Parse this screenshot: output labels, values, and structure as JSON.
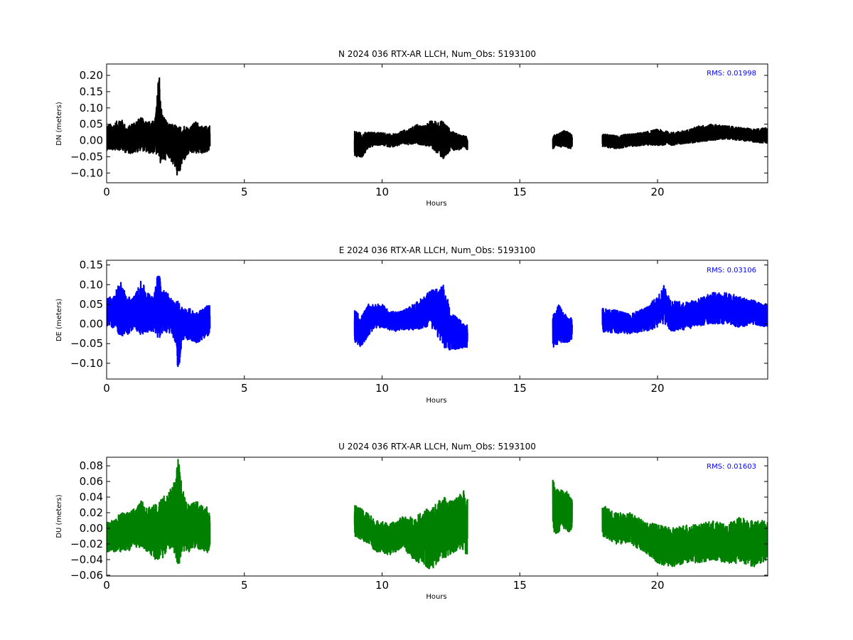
{
  "chart_data": [
    {
      "type": "line",
      "title": "N 2024 036 RTX-AR  LLCH, Num_Obs: 5193100",
      "xlabel": "Hours",
      "ylabel": "DN (meters)",
      "xlim": [
        0,
        24
      ],
      "ylim": [
        -0.13,
        0.235
      ],
      "xticks": [
        0,
        5,
        10,
        15,
        20
      ],
      "xtick_labels": [
        "0",
        "5",
        "10",
        "15",
        "20"
      ],
      "yticks": [
        -0.1,
        -0.05,
        0.0,
        0.05,
        0.1,
        0.15,
        0.2
      ],
      "ytick_labels": [
        "−0.10",
        "−0.05",
        "0.00",
        "0.05",
        "0.10",
        "0.15",
        "0.20"
      ],
      "color": "#000000",
      "annotation": "RMS:  0.01998",
      "segments": [
        {
          "x": [
            0.0,
            0.25,
            0.5,
            0.75,
            1.0,
            1.25,
            1.5,
            1.75,
            1.85,
            1.9,
            2.0,
            2.25,
            2.5,
            2.6,
            2.75,
            3.0,
            3.25,
            3.5,
            3.75
          ],
          "y_mid": [
            0.01,
            0.01,
            0.02,
            0.0,
            0.01,
            0.02,
            0.01,
            0.01,
            0.05,
            0.08,
            0.01,
            0.0,
            -0.02,
            -0.04,
            -0.01,
            0.0,
            0.01,
            0.0,
            0.01
          ],
          "y_spread": [
            0.04,
            0.04,
            0.05,
            0.04,
            0.05,
            0.05,
            0.05,
            0.05,
            0.1,
            0.15,
            0.08,
            0.05,
            0.07,
            0.08,
            0.06,
            0.04,
            0.05,
            0.04,
            0.04
          ]
        },
        {
          "x": [
            9.0,
            9.25,
            9.5,
            9.75,
            10.0,
            10.25,
            10.5,
            10.75,
            11.0,
            11.25,
            11.5,
            11.75,
            12.0,
            12.25,
            12.5,
            12.75,
            13.0,
            13.1
          ],
          "y_mid": [
            -0.01,
            -0.015,
            0.0,
            0.005,
            0.005,
            0.0,
            0.0,
            0.01,
            0.01,
            0.02,
            0.015,
            0.02,
            0.01,
            0.0,
            0.0,
            -0.005,
            -0.005,
            -0.01
          ],
          "y_spread": [
            0.04,
            0.04,
            0.025,
            0.02,
            0.02,
            0.02,
            0.02,
            0.02,
            0.025,
            0.03,
            0.03,
            0.04,
            0.05,
            0.06,
            0.03,
            0.025,
            0.02,
            0.02
          ]
        },
        {
          "x": [
            16.2,
            16.4,
            16.6,
            16.8,
            16.9
          ],
          "y_mid": [
            -0.005,
            0.0,
            0.005,
            0.0,
            -0.005
          ],
          "y_spread": [
            0.02,
            0.02,
            0.025,
            0.025,
            0.02
          ]
        },
        {
          "x": [
            18.0,
            18.5,
            19.0,
            19.5,
            20.0,
            20.5,
            21.0,
            21.5,
            22.0,
            22.5,
            23.0,
            23.5,
            24.0
          ],
          "y_mid": [
            0.0,
            -0.005,
            0.0,
            0.005,
            0.01,
            0.005,
            0.01,
            0.02,
            0.025,
            0.025,
            0.02,
            0.015,
            0.015
          ],
          "y_spread": [
            0.02,
            0.02,
            0.02,
            0.02,
            0.025,
            0.02,
            0.02,
            0.025,
            0.025,
            0.02,
            0.02,
            0.02,
            0.025
          ]
        }
      ]
    },
    {
      "type": "line",
      "title": "E 2024 036 RTX-AR  LLCH, Num_Obs: 5193100",
      "xlabel": "Hours",
      "ylabel": "DE (meters)",
      "xlim": [
        0,
        24
      ],
      "ylim": [
        -0.14,
        0.162
      ],
      "xticks": [
        0,
        5,
        10,
        15,
        20
      ],
      "xtick_labels": [
        "0",
        "5",
        "10",
        "15",
        "20"
      ],
      "yticks": [
        -0.1,
        -0.05,
        0.0,
        0.05,
        0.1,
        0.15
      ],
      "ytick_labels": [
        "−0.10",
        "−0.05",
        "0.00",
        "0.05",
        "0.10",
        "0.15"
      ],
      "color": "#0000ff",
      "annotation": "RMS:  0.03106",
      "segments": [
        {
          "x": [
            0.0,
            0.25,
            0.5,
            0.75,
            1.0,
            1.25,
            1.5,
            1.75,
            1.9,
            2.0,
            2.25,
            2.5,
            2.6,
            2.75,
            3.0,
            3.25,
            3.5,
            3.75
          ],
          "y_mid": [
            0.03,
            0.03,
            0.04,
            0.02,
            0.03,
            0.04,
            0.03,
            0.03,
            0.06,
            0.03,
            0.03,
            0.0,
            -0.03,
            0.0,
            0.0,
            -0.01,
            0.0,
            0.01
          ],
          "y_spread": [
            0.04,
            0.04,
            0.07,
            0.05,
            0.04,
            0.07,
            0.05,
            0.05,
            0.1,
            0.06,
            0.05,
            0.05,
            0.1,
            0.04,
            0.04,
            0.04,
            0.04,
            0.04
          ]
        },
        {
          "x": [
            9.0,
            9.25,
            9.5,
            9.75,
            10.0,
            10.25,
            10.5,
            10.75,
            11.0,
            11.25,
            11.5,
            11.75,
            12.0,
            12.25,
            12.5,
            12.75,
            13.0,
            13.1
          ],
          "y_mid": [
            -0.005,
            -0.02,
            0.01,
            0.02,
            0.02,
            0.01,
            0.005,
            0.01,
            0.015,
            0.02,
            0.03,
            0.04,
            0.03,
            0.02,
            -0.02,
            -0.025,
            -0.03,
            -0.03
          ],
          "y_spread": [
            0.04,
            0.04,
            0.04,
            0.03,
            0.03,
            0.025,
            0.025,
            0.025,
            0.03,
            0.035,
            0.04,
            0.045,
            0.06,
            0.08,
            0.05,
            0.04,
            0.03,
            0.03
          ]
        },
        {
          "x": [
            16.2,
            16.4,
            16.6,
            16.8,
            16.9
          ],
          "y_mid": [
            -0.02,
            0.0,
            -0.01,
            -0.015,
            -0.01
          ],
          "y_spread": [
            0.04,
            0.05,
            0.04,
            0.03,
            0.03
          ]
        },
        {
          "x": [
            18.0,
            18.5,
            19.0,
            19.5,
            20.0,
            20.25,
            20.5,
            21.0,
            21.5,
            22.0,
            22.5,
            23.0,
            23.5,
            24.0
          ],
          "y_mid": [
            0.01,
            0.005,
            0.0,
            0.01,
            0.03,
            0.05,
            0.02,
            0.02,
            0.03,
            0.04,
            0.04,
            0.03,
            0.03,
            0.02
          ],
          "y_spread": [
            0.03,
            0.03,
            0.025,
            0.03,
            0.04,
            0.05,
            0.04,
            0.035,
            0.035,
            0.04,
            0.04,
            0.04,
            0.03,
            0.03
          ]
        }
      ]
    },
    {
      "type": "line",
      "title": "U 2024 036 RTX-AR  LLCH, Num_Obs: 5193100",
      "xlabel": "Hours",
      "ylabel": "DU (meters)",
      "xlim": [
        0,
        24
      ],
      "ylim": [
        -0.061,
        0.091
      ],
      "xticks": [
        0,
        5,
        10,
        15,
        20
      ],
      "xtick_labels": [
        "0",
        "5",
        "10",
        "15",
        "20"
      ],
      "yticks": [
        -0.06,
        -0.04,
        -0.02,
        0.0,
        0.02,
        0.04,
        0.06,
        0.08
      ],
      "ytick_labels": [
        "−0.06",
        "−0.04",
        "−0.02",
        "0.00",
        "0.02",
        "0.04",
        "0.06",
        "0.08"
      ],
      "color": "#008000",
      "annotation": "RMS:  0.01603",
      "segments": [
        {
          "x": [
            0.0,
            0.25,
            0.5,
            0.75,
            1.0,
            1.25,
            1.5,
            1.75,
            2.0,
            2.25,
            2.5,
            2.6,
            2.75,
            3.0,
            3.25,
            3.5,
            3.75
          ],
          "y_mid": [
            -0.01,
            -0.01,
            -0.005,
            -0.005,
            0.0,
            0.005,
            0.0,
            -0.005,
            0.0,
            0.01,
            0.015,
            0.02,
            0.01,
            0.0,
            0.005,
            0.0,
            -0.005
          ],
          "y_spread": [
            0.02,
            0.02,
            0.025,
            0.025,
            0.025,
            0.03,
            0.03,
            0.035,
            0.04,
            0.035,
            0.05,
            0.07,
            0.04,
            0.03,
            0.03,
            0.03,
            0.03
          ]
        },
        {
          "x": [
            9.0,
            9.25,
            9.5,
            9.75,
            10.0,
            10.25,
            10.5,
            10.75,
            11.0,
            11.25,
            11.5,
            11.75,
            12.0,
            12.25,
            12.5,
            12.75,
            13.0,
            13.1
          ],
          "y_mid": [
            0.01,
            0.005,
            0.0,
            -0.01,
            -0.01,
            -0.015,
            -0.01,
            -0.005,
            -0.01,
            -0.015,
            -0.01,
            -0.015,
            -0.005,
            0.0,
            0.0,
            0.005,
            0.01,
            0.0
          ],
          "y_spread": [
            0.02,
            0.02,
            0.02,
            0.02,
            0.02,
            0.02,
            0.02,
            0.02,
            0.025,
            0.03,
            0.035,
            0.04,
            0.04,
            0.04,
            0.035,
            0.035,
            0.04,
            0.04
          ]
        },
        {
          "x": [
            16.2,
            16.4,
            16.6,
            16.8,
            16.9
          ],
          "y_mid": [
            0.03,
            0.02,
            0.025,
            0.02,
            0.02
          ],
          "y_spread": [
            0.035,
            0.03,
            0.025,
            0.025,
            0.02
          ]
        },
        {
          "x": [
            18.0,
            18.5,
            19.0,
            19.5,
            20.0,
            20.5,
            21.0,
            21.5,
            22.0,
            22.5,
            23.0,
            23.5,
            24.0
          ],
          "y_mid": [
            0.01,
            0.0,
            0.0,
            -0.01,
            -0.02,
            -0.025,
            -0.02,
            -0.02,
            -0.015,
            -0.02,
            -0.015,
            -0.02,
            -0.015
          ],
          "y_spread": [
            0.02,
            0.02,
            0.02,
            0.02,
            0.025,
            0.025,
            0.025,
            0.025,
            0.025,
            0.025,
            0.03,
            0.03,
            0.025
          ]
        }
      ]
    }
  ]
}
